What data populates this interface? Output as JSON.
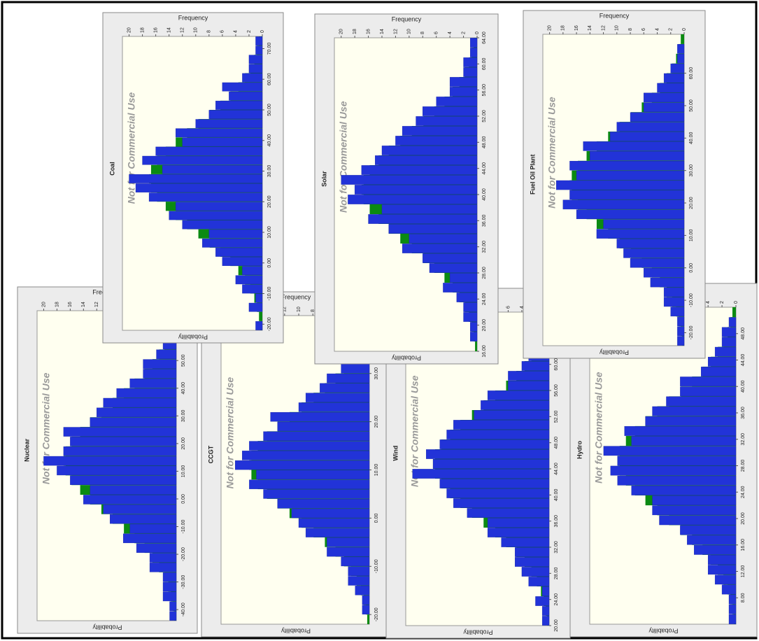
{
  "chart_data": [
    {
      "type": "histogram",
      "title": "Nuclear",
      "annotation": "Not for Commercial Use",
      "ylabel": "Frequency",
      "y2label": "Probability",
      "color": "#2233d8",
      "fit_color": "#0b8a12",
      "bins": [
        -44,
        -40.5,
        -37,
        -33.5,
        -30,
        -26.5,
        -23,
        -19.5,
        -16,
        -12.5,
        -9,
        -5.5,
        -2,
        1.5,
        5,
        8.5,
        12,
        15.5,
        19,
        22.5,
        26,
        29.5,
        33,
        36.5,
        40,
        43.5,
        47,
        50.5,
        54,
        57.5,
        61,
        64.5,
        68
      ],
      "counts": [
        1,
        1,
        2,
        2,
        2,
        4,
        4,
        6,
        8,
        7,
        10,
        11,
        14,
        13,
        16,
        18,
        20,
        17,
        16,
        17,
        13,
        12,
        11,
        9,
        7,
        5,
        5,
        3,
        2,
        2,
        1,
        1
      ],
      "fit": [
        0.3,
        0.5,
        0.8,
        1.2,
        1.8,
        2.6,
        3.6,
        4.8,
        6.3,
        7.9,
        9.6,
        11.3,
        13,
        14.5,
        15.8,
        16.7,
        17,
        16.7,
        15.8,
        14.5,
        13,
        11.3,
        9.6,
        7.9,
        6.3,
        4.8,
        3.6,
        2.6,
        1.8,
        1.2,
        0.8,
        0.5
      ],
      "xlim": [
        -44,
        68
      ],
      "ylim": [
        0,
        21
      ],
      "xticks": [
        {
          "value": -40,
          "label": "-40.00"
        },
        {
          "value": -30,
          "label": "-30.00"
        },
        {
          "value": -20,
          "label": "-20.00"
        },
        {
          "value": -10,
          "label": "-10.00"
        },
        {
          "value": 0,
          "label": "0.00"
        },
        {
          "value": 10,
          "label": "10.00"
        },
        {
          "value": 20,
          "label": "20.00"
        },
        {
          "value": 30,
          "label": "30.00"
        },
        {
          "value": 40,
          "label": "40.00"
        },
        {
          "value": 50,
          "label": "50.00"
        },
        {
          "value": 60,
          "label": "60.00"
        }
      ],
      "yticks": [
        0,
        2,
        4,
        6,
        8,
        10,
        12,
        14,
        16,
        18,
        20
      ]
    },
    {
      "type": "histogram",
      "title": "CCGT",
      "annotation": "Not for Commercial Use",
      "ylabel": "Frequency",
      "y2label": "Probability",
      "color": "#2233d8",
      "fit_color": "#0b8a12",
      "bins": [
        -22,
        -20,
        -18,
        -16,
        -14,
        -12,
        -10,
        -8,
        -6,
        -4,
        -2,
        0,
        2,
        4,
        6,
        8,
        10,
        12,
        14,
        16,
        18,
        20,
        22,
        24,
        26,
        28,
        30,
        32,
        34,
        36,
        38,
        40,
        42
      ],
      "counts": [
        0,
        1,
        1,
        2,
        3,
        3,
        4,
        6,
        6,
        9,
        10,
        11,
        13,
        15,
        17,
        16,
        19,
        18,
        17,
        15,
        13,
        14,
        10,
        9,
        7,
        6,
        4,
        3,
        3,
        1,
        1,
        1
      ],
      "fit": [
        0.3,
        0.5,
        0.8,
        1.2,
        1.8,
        2.6,
        3.6,
        4.8,
        6.3,
        7.9,
        9.6,
        11.3,
        13,
        14.5,
        15.8,
        16.7,
        17,
        16.7,
        15.8,
        14.5,
        13,
        11.3,
        9.6,
        7.9,
        6.3,
        4.8,
        3.6,
        2.6,
        1.8,
        1.2,
        0.8,
        0.5
      ],
      "xlim": [
        -22,
        42
      ],
      "ylim": [
        0,
        21
      ],
      "xticks": [
        {
          "value": -20,
          "label": "-20.00"
        },
        {
          "value": -10,
          "label": "-10.00"
        },
        {
          "value": 0,
          "label": "0.00"
        },
        {
          "value": 10,
          "label": "10.00"
        },
        {
          "value": 20,
          "label": "20.00"
        },
        {
          "value": 30,
          "label": "30.00"
        },
        {
          "value": 40,
          "label": "40.00"
        }
      ],
      "yticks": [
        0,
        2,
        4,
        6,
        8,
        10,
        12,
        14,
        16,
        18,
        20
      ]
    },
    {
      "type": "histogram",
      "title": "Wind",
      "annotation": "Not for Commercial Use",
      "ylabel": "Frequency",
      "y2label": "Probability",
      "color": "#2233d8",
      "fit_color": "#0b8a12",
      "bins": [
        20,
        21.5,
        23,
        24.5,
        26,
        27.5,
        29,
        30.5,
        32,
        33.5,
        35,
        36.5,
        38,
        39.5,
        41,
        42.5,
        44,
        45.5,
        47,
        48.5,
        50,
        51.5,
        53,
        54.5,
        56,
        57.5,
        59,
        60.5,
        62,
        63.5,
        65,
        66.5,
        68
      ],
      "counts": [
        1,
        1,
        2,
        1,
        3,
        4,
        5,
        5,
        7,
        9,
        9,
        12,
        14,
        15,
        16,
        20,
        17,
        18,
        16,
        15,
        14,
        11,
        10,
        9,
        6,
        6,
        4,
        3,
        2,
        1,
        1,
        1
      ],
      "fit": [
        0.3,
        0.5,
        0.8,
        1.2,
        1.8,
        2.6,
        3.6,
        4.8,
        6.3,
        7.9,
        9.6,
        11.3,
        13,
        14.5,
        15.8,
        16.7,
        17,
        16.7,
        15.8,
        14.5,
        13,
        11.3,
        9.6,
        7.9,
        6.3,
        4.8,
        3.6,
        2.6,
        1.8,
        1.2,
        0.8,
        0.5
      ],
      "xlim": [
        20,
        68
      ],
      "ylim": [
        0,
        21
      ],
      "xticks": [
        {
          "value": 20,
          "label": "20.00"
        },
        {
          "value": 24,
          "label": "24.00"
        },
        {
          "value": 28,
          "label": "28.00"
        },
        {
          "value": 32,
          "label": "32.00"
        },
        {
          "value": 36,
          "label": "36.00"
        },
        {
          "value": 40,
          "label": "40.00"
        },
        {
          "value": 44,
          "label": "44.00"
        },
        {
          "value": 48,
          "label": "48.00"
        },
        {
          "value": 52,
          "label": "52.00"
        },
        {
          "value": 56,
          "label": "56.00"
        },
        {
          "value": 60,
          "label": "60.00"
        },
        {
          "value": 64,
          "label": "64.00"
        }
      ],
      "yticks": [
        0,
        2,
        4,
        6,
        8,
        10,
        12,
        14,
        16,
        18,
        20
      ]
    },
    {
      "type": "histogram",
      "title": "Hydro",
      "annotation": "Not for Commercial Use",
      "ylabel": "Frequency",
      "y2label": "Probability",
      "color": "#2233d8",
      "fit_color": "#0b8a12",
      "bins": [
        4,
        5.5,
        7,
        8.5,
        10,
        11.5,
        13,
        14.5,
        16,
        17.5,
        19,
        20.5,
        22,
        23.5,
        25,
        26.5,
        28,
        29.5,
        31,
        32.5,
        34,
        35.5,
        37,
        38.5,
        40,
        41.5,
        43,
        44.5,
        46,
        47.5,
        49,
        50.5,
        52
      ],
      "counts": [
        1,
        1,
        1,
        2,
        3,
        4,
        4,
        6,
        7,
        8,
        11,
        12,
        12,
        15,
        17,
        18,
        17,
        19,
        15,
        16,
        13,
        12,
        10,
        8,
        8,
        5,
        4,
        3,
        2,
        2,
        1,
        0
      ],
      "fit": [
        0.3,
        0.5,
        0.8,
        1.2,
        1.8,
        2.6,
        3.6,
        4.8,
        6.3,
        7.9,
        9.6,
        11.3,
        13,
        14.5,
        15.8,
        16.7,
        17,
        16.7,
        15.8,
        14.5,
        13,
        11.3,
        9.6,
        7.9,
        6.3,
        4.8,
        3.6,
        2.6,
        1.8,
        1.2,
        0.8,
        0.5
      ],
      "xlim": [
        4,
        52
      ],
      "ylim": [
        0,
        21
      ],
      "xticks": [
        {
          "value": 8,
          "label": "8.00"
        },
        {
          "value": 12,
          "label": "12.00"
        },
        {
          "value": 16,
          "label": "16.00"
        },
        {
          "value": 20,
          "label": "20.00"
        },
        {
          "value": 24,
          "label": "24.00"
        },
        {
          "value": 28,
          "label": "28.00"
        },
        {
          "value": 32,
          "label": "32.00"
        },
        {
          "value": 36,
          "label": "36.00"
        },
        {
          "value": 40,
          "label": "40.00"
        },
        {
          "value": 44,
          "label": "44.00"
        },
        {
          "value": 48,
          "label": "48.00"
        }
      ],
      "yticks": [
        0,
        2,
        4,
        6,
        8,
        10,
        12,
        14,
        16,
        18,
        20
      ]
    },
    {
      "type": "histogram",
      "title": "Coal",
      "annotation": "Not for Commercial Use",
      "ylabel": "Frequency",
      "y2label": "Probability",
      "color": "#2233d8",
      "fit_color": "#0b8a12",
      "bins": [
        -22,
        -19,
        -16,
        -13,
        -10,
        -7,
        -4,
        -1,
        2,
        5,
        8,
        11,
        14,
        17,
        20,
        23,
        26,
        29,
        32,
        35,
        38,
        41,
        44,
        47,
        50,
        53,
        56,
        59,
        62,
        65,
        68,
        71,
        74
      ],
      "counts": [
        1,
        0,
        2,
        1,
        3,
        4,
        3,
        6,
        7,
        9,
        8,
        12,
        14,
        13,
        17,
        19,
        20,
        15,
        18,
        16,
        12,
        13,
        10,
        8,
        7,
        5,
        6,
        3,
        2,
        2,
        1,
        1
      ],
      "fit": [
        0.3,
        0.5,
        0.8,
        1.2,
        1.8,
        2.6,
        3.6,
        4.8,
        6.3,
        7.9,
        9.6,
        11.3,
        13,
        14.5,
        15.8,
        16.7,
        17,
        16.7,
        15.8,
        14.5,
        13,
        11.3,
        9.6,
        7.9,
        6.3,
        4.8,
        3.6,
        2.6,
        1.8,
        1.2,
        0.8,
        0.5
      ],
      "xlim": [
        -22,
        74
      ],
      "ylim": [
        0,
        21
      ],
      "xticks": [
        {
          "value": -20,
          "label": "-20.00"
        },
        {
          "value": -10,
          "label": "-10.00"
        },
        {
          "value": 0,
          "label": "0.00"
        },
        {
          "value": 10,
          "label": "10.00"
        },
        {
          "value": 20,
          "label": "20.00"
        },
        {
          "value": 30,
          "label": "30.00"
        },
        {
          "value": 40,
          "label": "40.00"
        },
        {
          "value": 50,
          "label": "50.00"
        },
        {
          "value": 60,
          "label": "60.00"
        },
        {
          "value": 70,
          "label": "70.00"
        }
      ],
      "yticks": [
        0,
        2,
        4,
        6,
        8,
        10,
        12,
        14,
        16,
        18,
        20
      ]
    },
    {
      "type": "histogram",
      "title": "Solar",
      "annotation": "Not for Commercial Use",
      "ylabel": "Frequency",
      "y2label": "Probability",
      "color": "#2233d8",
      "fit_color": "#0b8a12",
      "bins": [
        16,
        17.5,
        19,
        20.5,
        22,
        23.5,
        25,
        26.5,
        28,
        29.5,
        31,
        32.5,
        34,
        35.5,
        37,
        38.5,
        40,
        41.5,
        43,
        44.5,
        46,
        47.5,
        49,
        50.5,
        52,
        53.5,
        55,
        56.5,
        58,
        59.5,
        61,
        62.5,
        64
      ],
      "counts": [
        0,
        1,
        1,
        2,
        2,
        3,
        5,
        4,
        7,
        8,
        11,
        10,
        13,
        16,
        14,
        19,
        18,
        20,
        17,
        15,
        14,
        12,
        11,
        9,
        8,
        6,
        4,
        4,
        2,
        2,
        1,
        1
      ],
      "fit": [
        0.3,
        0.5,
        0.8,
        1.2,
        1.8,
        2.6,
        3.6,
        4.8,
        6.3,
        7.9,
        9.6,
        11.3,
        13,
        14.5,
        15.8,
        16.7,
        17,
        16.7,
        15.8,
        14.5,
        13,
        11.3,
        9.6,
        7.9,
        6.3,
        4.8,
        3.6,
        2.6,
        1.8,
        1.2,
        0.8,
        0.5
      ],
      "xlim": [
        16,
        64
      ],
      "ylim": [
        0,
        21
      ],
      "xticks": [
        {
          "value": 16,
          "label": "16.00"
        },
        {
          "value": 20,
          "label": "20.00"
        },
        {
          "value": 24,
          "label": "24.00"
        },
        {
          "value": 28,
          "label": "28.00"
        },
        {
          "value": 32,
          "label": "32.00"
        },
        {
          "value": 36,
          "label": "36.00"
        },
        {
          "value": 40,
          "label": "40.00"
        },
        {
          "value": 44,
          "label": "44.00"
        },
        {
          "value": 48,
          "label": "48.00"
        },
        {
          "value": 52,
          "label": "52.00"
        },
        {
          "value": 56,
          "label": "56.00"
        },
        {
          "value": 60,
          "label": "60.00"
        },
        {
          "value": 64,
          "label": "64.00"
        }
      ],
      "yticks": [
        0,
        2,
        4,
        6,
        8,
        10,
        12,
        14,
        16,
        18,
        20
      ]
    },
    {
      "type": "histogram",
      "title": "Fuel Oil Plant",
      "annotation": "Not for Commercial Use",
      "ylabel": "Frequency",
      "y2label": "Probability",
      "color": "#2233d8",
      "fit_color": "#0b8a12",
      "bins": [
        -24,
        -21,
        -18,
        -15,
        -12,
        -9,
        -6,
        -3,
        0,
        3,
        6,
        9,
        12,
        15,
        18,
        21,
        24,
        27,
        30,
        33,
        36,
        39,
        42,
        45,
        48,
        51,
        54,
        57,
        60,
        63,
        66,
        69,
        72
      ],
      "counts": [
        1,
        1,
        1,
        2,
        3,
        3,
        5,
        6,
        8,
        9,
        10,
        13,
        12,
        16,
        18,
        17,
        19,
        16,
        17,
        14,
        15,
        11,
        10,
        8,
        6,
        6,
        4,
        3,
        2,
        1,
        1,
        0
      ],
      "fit": [
        0.3,
        0.5,
        0.8,
        1.2,
        1.8,
        2.6,
        3.6,
        4.8,
        6.3,
        7.9,
        9.6,
        11.3,
        13,
        14.5,
        15.8,
        16.7,
        17,
        16.7,
        15.8,
        14.5,
        13,
        11.3,
        9.6,
        7.9,
        6.3,
        4.8,
        3.6,
        2.6,
        1.8,
        1.2,
        0.8,
        0.5
      ],
      "xlim": [
        -24,
        72
      ],
      "ylim": [
        0,
        21
      ],
      "xticks": [
        {
          "value": -20,
          "label": "-20.00"
        },
        {
          "value": -10,
          "label": "-10.00"
        },
        {
          "value": 0,
          "label": "0.00"
        },
        {
          "value": 10,
          "label": "10.00"
        },
        {
          "value": 20,
          "label": "20.00"
        },
        {
          "value": 30,
          "label": "30.00"
        },
        {
          "value": 40,
          "label": "40.00"
        },
        {
          "value": 50,
          "label": "50.00"
        },
        {
          "value": 60,
          "label": "60.00"
        }
      ],
      "yticks": [
        0,
        2,
        4,
        6,
        8,
        10,
        12,
        14,
        16,
        18,
        20
      ]
    }
  ]
}
